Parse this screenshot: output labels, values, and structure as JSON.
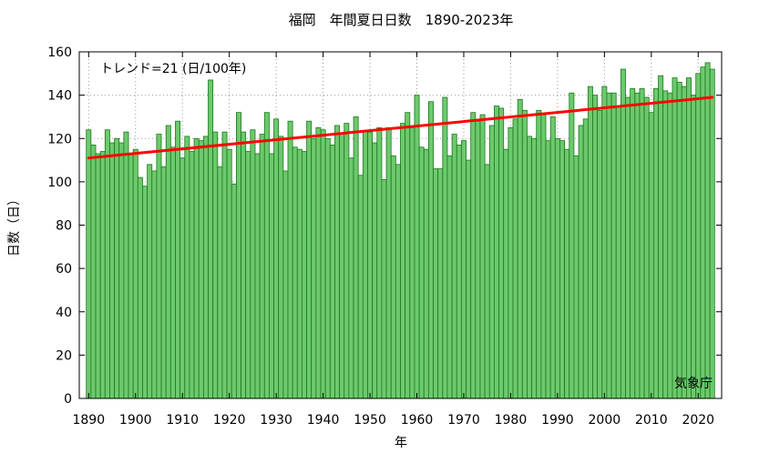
{
  "chart_data": {
    "type": "bar",
    "title": "福岡　年間夏日日数　1890-2023年",
    "xlabel": "年",
    "ylabel": "日数（日）",
    "annotation": "トレンド=21 (日/100年)",
    "credit": "気象庁",
    "ylim": [
      0,
      160
    ],
    "yticks": [
      0,
      20,
      40,
      60,
      80,
      100,
      120,
      140,
      160
    ],
    "xlim": [
      1888,
      2025
    ],
    "xticks": [
      1890,
      1900,
      1910,
      1920,
      1930,
      1940,
      1950,
      1960,
      1970,
      1980,
      1990,
      2000,
      2010,
      2020
    ],
    "grid": true,
    "bar_color": "#6dc96d",
    "bar_edge_color": "#1a7a1a",
    "trend_color": "#ff0000",
    "trend": {
      "x": [
        1890,
        2023
      ],
      "y": [
        111,
        139
      ]
    },
    "years_start": 1890,
    "values": [
      124,
      117,
      113,
      114,
      124,
      118,
      120,
      118,
      123,
      113,
      115,
      102,
      98,
      108,
      105,
      122,
      107,
      126,
      116,
      128,
      111,
      121,
      114,
      120,
      119,
      121,
      147,
      123,
      107,
      123,
      115,
      99,
      132,
      123,
      114,
      124,
      113,
      122,
      132,
      113,
      129,
      121,
      105,
      128,
      116,
      115,
      114,
      128,
      120,
      125,
      124,
      120,
      117,
      126,
      122,
      127,
      111,
      130,
      103,
      123,
      123,
      118,
      125,
      101,
      125,
      112,
      108,
      127,
      132,
      125,
      140,
      116,
      115,
      137,
      106,
      106,
      139,
      112,
      122,
      117,
      119,
      110,
      132,
      128,
      131,
      108,
      126,
      135,
      134,
      115,
      125,
      129,
      138,
      133,
      121,
      120,
      133,
      131,
      119,
      130,
      120,
      119,
      115,
      141,
      112,
      126,
      129,
      144,
      140,
      133,
      144,
      141,
      141,
      135,
      152,
      139,
      143,
      141,
      143,
      139,
      132,
      143,
      149,
      142,
      141,
      148,
      146,
      144,
      148,
      140,
      150,
      153,
      155,
      152
    ]
  }
}
